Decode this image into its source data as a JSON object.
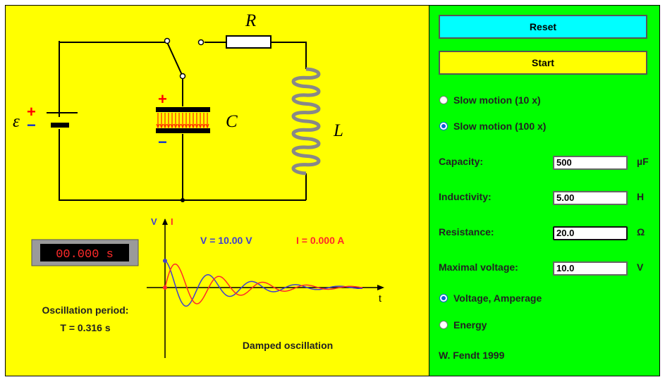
{
  "labels": {
    "R": "R",
    "C": "C",
    "L": "L",
    "emf": "ε",
    "plus": "+",
    "minus": "−"
  },
  "timer": {
    "display": "00.000 s"
  },
  "period": {
    "label": "Oscillation period:",
    "value": "T = 0.316 s"
  },
  "graph": {
    "v_axis": "V",
    "i_axis": "I",
    "t_axis": "t",
    "voltage_readout": "V = 10.00 V",
    "current_readout": "I = 0.000 A",
    "caption": "Damped oscillation"
  },
  "controls": {
    "reset_label": "Reset",
    "start_label": "Start",
    "slow10_label": "Slow motion (10 x)",
    "slow100_label": "Slow motion (100 x)",
    "slow_selected": "slow100",
    "capacity": {
      "label": "Capacity:",
      "value": "500",
      "unit": "µF"
    },
    "inductivity": {
      "label": "Inductivity:",
      "value": "5.00",
      "unit": "H"
    },
    "resistance": {
      "label": "Resistance:",
      "value": "20.0",
      "unit": "Ω"
    },
    "max_voltage": {
      "label": "Maximal voltage:",
      "value": "10.0",
      "unit": "V"
    },
    "mode_voltage_label": "Voltage, Amperage",
    "mode_energy_label": "Energy",
    "mode_selected": "voltage"
  },
  "credit": "W. Fendt 1999",
  "colors": {
    "canvas_bg": "#ffff00",
    "panel_bg": "#00ff00",
    "reset_bg": "#00ffff",
    "start_bg": "#ffff00",
    "voltage_curve": "#3f3fd0",
    "current_curve": "#ff2a2a",
    "plus": "#ff0000",
    "minus": "#1030d0"
  }
}
